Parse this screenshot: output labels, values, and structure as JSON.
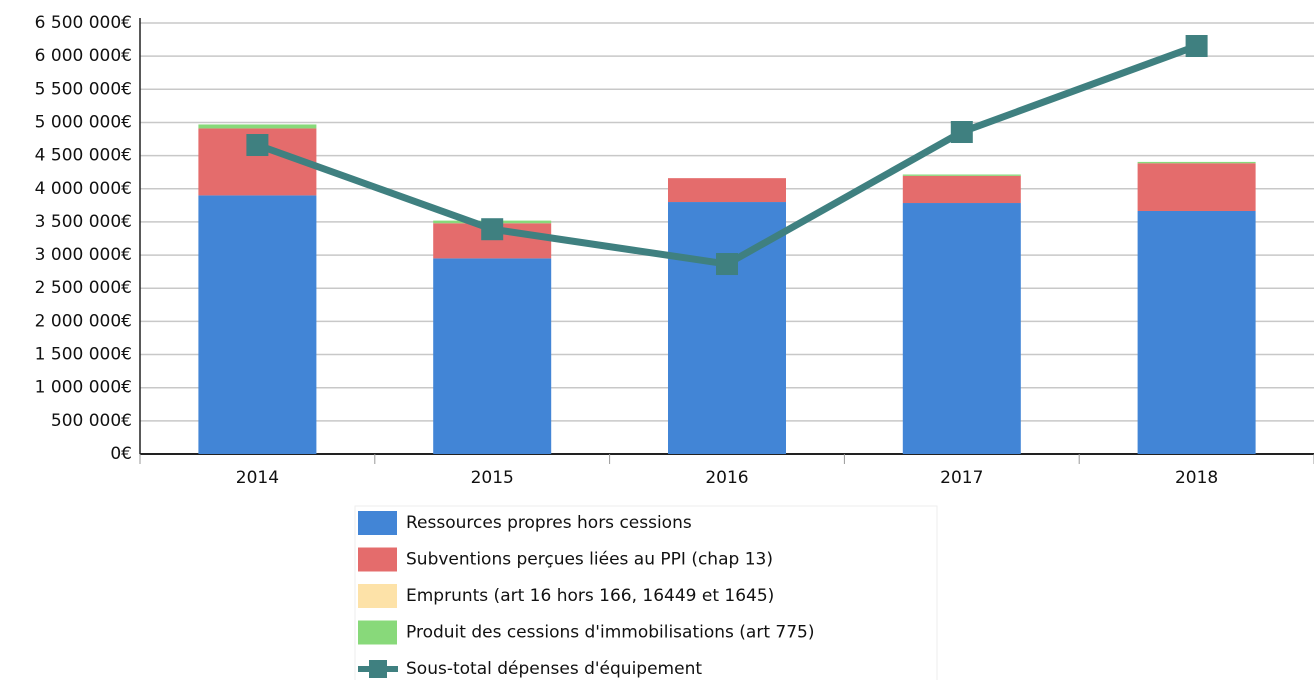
{
  "chart_data": {
    "type": "stacked-bar-line",
    "categories": [
      "2014",
      "2015",
      "2016",
      "2017",
      "2018"
    ],
    "series": [
      {
        "name": "Ressources propres hors cessions",
        "color": "#4285d6",
        "type": "bar",
        "values": [
          3900000,
          2950000,
          3800000,
          3785000,
          3665000
        ]
      },
      {
        "name": "Subventions perçues liées au PPI (chap 13)",
        "color": "#e46c6c",
        "type": "bar",
        "values": [
          1010000,
          530000,
          360000,
          410000,
          720000
        ]
      },
      {
        "name": "Emprunts (art 16 hors 166, 16449 et 1645)",
        "color": "#fde2a8",
        "type": "bar",
        "values": [
          0,
          0,
          0,
          0,
          0
        ]
      },
      {
        "name": "Produit des cessions d'immobilisations (art 775)",
        "color": "#88d97a",
        "type": "bar",
        "values": [
          60000,
          40000,
          0,
          20000,
          20000
        ]
      },
      {
        "name": "Sous-total dépenses d'équipement",
        "color": "#3f8080",
        "type": "line",
        "values": [
          4660000,
          3390000,
          2865000,
          4856000,
          6153000
        ]
      }
    ],
    "ylim": [
      0,
      6500000
    ],
    "yticks": [
      {
        "value": 0,
        "label": "0€"
      },
      {
        "value": 500000,
        "label": "500 000€"
      },
      {
        "value": 1000000,
        "label": "1 000 000€"
      },
      {
        "value": 1500000,
        "label": "1 500 000€"
      },
      {
        "value": 2000000,
        "label": "2 000 000€"
      },
      {
        "value": 2500000,
        "label": "2 500 000€"
      },
      {
        "value": 3000000,
        "label": "3 000 000€"
      },
      {
        "value": 3500000,
        "label": "3 500 000€"
      },
      {
        "value": 4000000,
        "label": "4 000 000€"
      },
      {
        "value": 4500000,
        "label": "4 500 000€"
      },
      {
        "value": 5000000,
        "label": "5 000 000€"
      },
      {
        "value": 5500000,
        "label": "5 500 000€"
      },
      {
        "value": 6000000,
        "label": "6 000 000€"
      },
      {
        "value": 6500000,
        "label": "6 500 000€"
      }
    ],
    "grid": true
  }
}
